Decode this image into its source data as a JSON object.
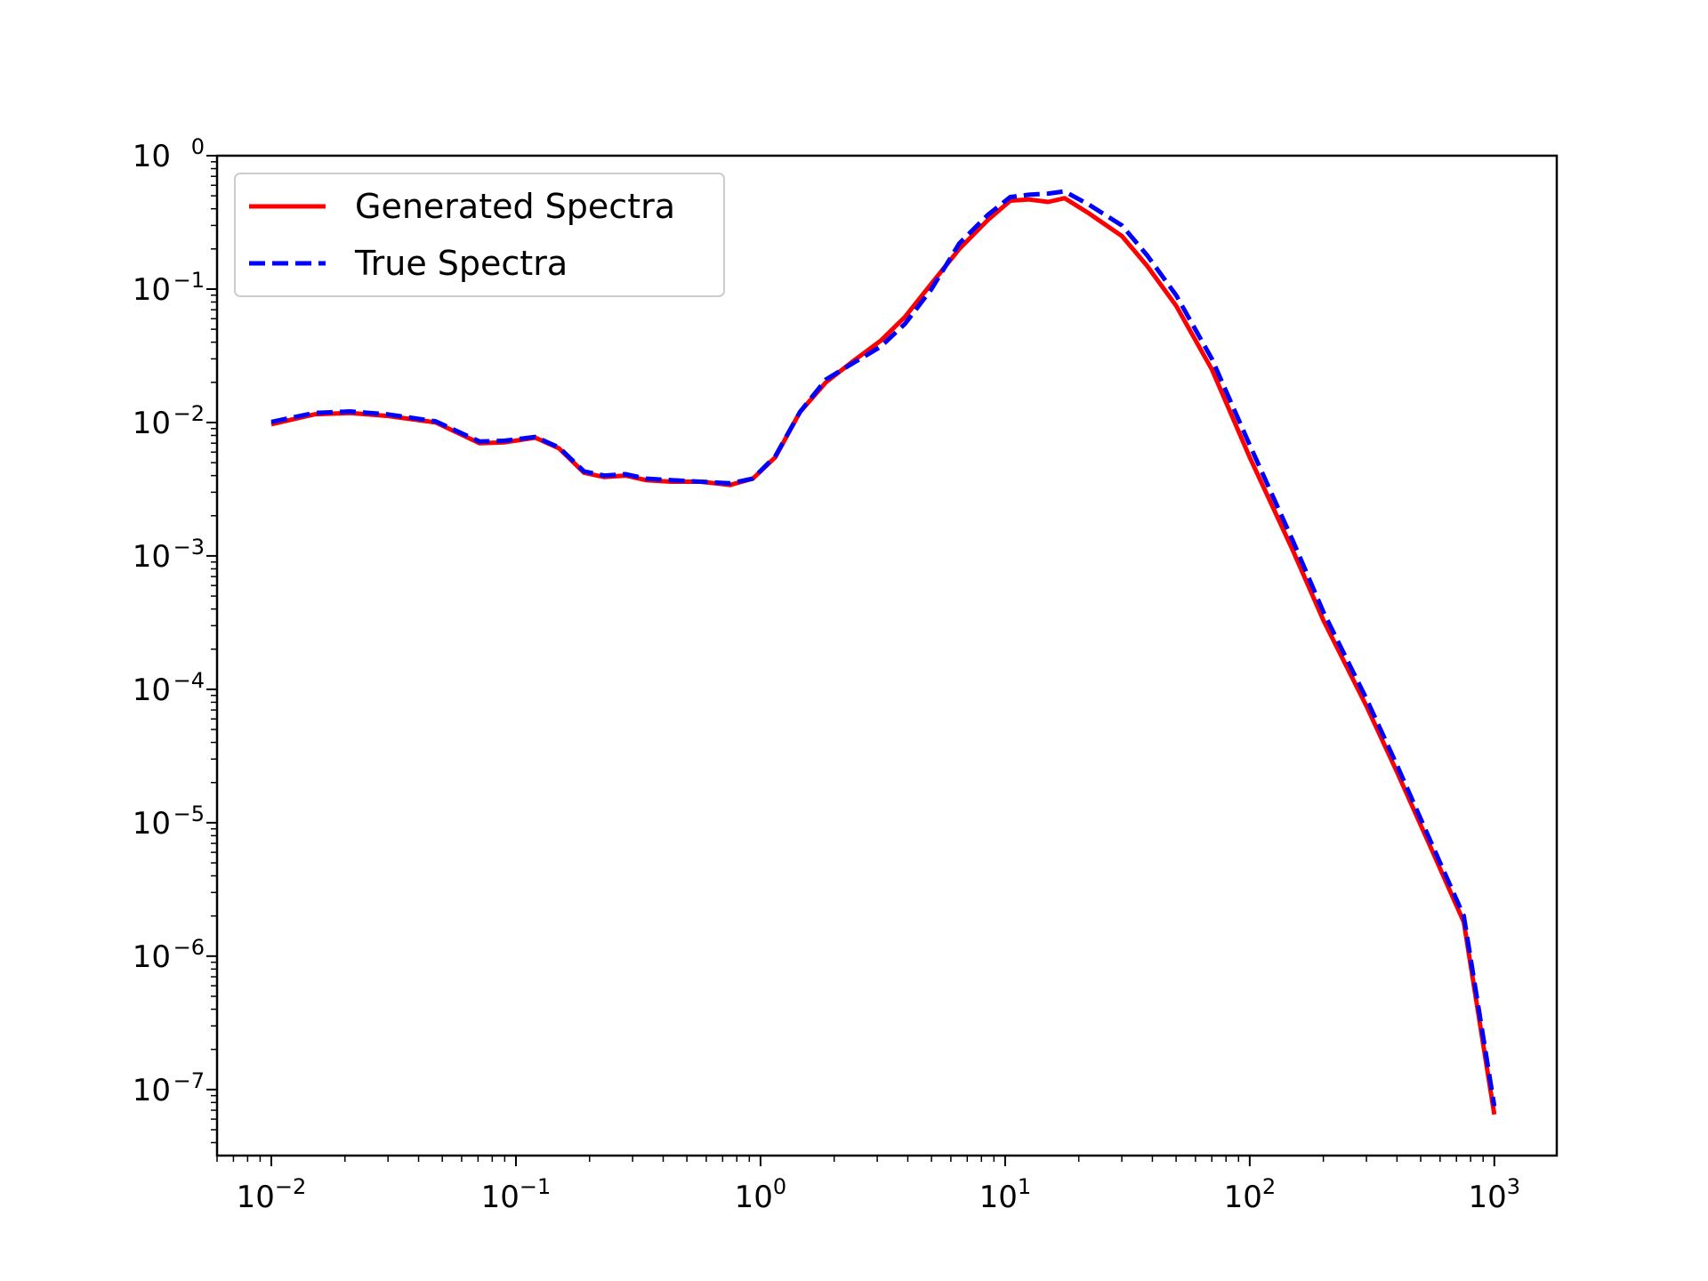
{
  "chart_data": {
    "type": "line",
    "title": "",
    "xlabel": "",
    "ylabel": "",
    "xscale": "log",
    "yscale": "log",
    "xlim": [
      0.006,
      1800
    ],
    "ylim": [
      3.2e-08,
      1.0
    ],
    "grid": false,
    "legend_position": "top-left",
    "x_ticks": [
      {
        "value": 0.01,
        "base": "10",
        "exp": "−2"
      },
      {
        "value": 0.1,
        "base": "10",
        "exp": "−1"
      },
      {
        "value": 1,
        "base": "10",
        "exp": "0"
      },
      {
        "value": 10,
        "base": "10",
        "exp": "1"
      },
      {
        "value": 100,
        "base": "10",
        "exp": "2"
      },
      {
        "value": 1000,
        "base": "10",
        "exp": "3"
      }
    ],
    "y_ticks": [
      {
        "value": 1,
        "base": "10",
        "exp": "0"
      },
      {
        "value": 0.1,
        "base": "10",
        "exp": "−1"
      },
      {
        "value": 0.01,
        "base": "10",
        "exp": "−2"
      },
      {
        "value": 0.001,
        "base": "10",
        "exp": "−3"
      },
      {
        "value": 0.0001,
        "base": "10",
        "exp": "−4"
      },
      {
        "value": 1e-05,
        "base": "10",
        "exp": "−5"
      },
      {
        "value": 1e-06,
        "base": "10",
        "exp": "−6"
      },
      {
        "value": 1e-07,
        "base": "10",
        "exp": "−7"
      }
    ],
    "series": [
      {
        "name": "Generated Spectra",
        "color": "#ff0000",
        "style": "solid",
        "points": [
          [
            0.01,
            0.0097
          ],
          [
            0.015,
            0.0115
          ],
          [
            0.021,
            0.0118
          ],
          [
            0.03,
            0.0112
          ],
          [
            0.047,
            0.01
          ],
          [
            0.071,
            0.007
          ],
          [
            0.09,
            0.0071
          ],
          [
            0.12,
            0.0077
          ],
          [
            0.15,
            0.0064
          ],
          [
            0.19,
            0.0042
          ],
          [
            0.23,
            0.0039
          ],
          [
            0.28,
            0.004
          ],
          [
            0.34,
            0.0037
          ],
          [
            0.43,
            0.0036
          ],
          [
            0.57,
            0.0036
          ],
          [
            0.75,
            0.0034
          ],
          [
            0.93,
            0.0038
          ],
          [
            1.15,
            0.0055
          ],
          [
            1.45,
            0.012
          ],
          [
            1.85,
            0.02
          ],
          [
            2.4,
            0.029
          ],
          [
            3.1,
            0.041
          ],
          [
            3.9,
            0.062
          ],
          [
            5.0,
            0.11
          ],
          [
            6.5,
            0.2
          ],
          [
            8.5,
            0.33
          ],
          [
            10.5,
            0.46
          ],
          [
            12.5,
            0.47
          ],
          [
            15,
            0.45
          ],
          [
            17.5,
            0.48
          ],
          [
            22,
            0.37
          ],
          [
            30,
            0.25
          ],
          [
            38,
            0.15
          ],
          [
            50,
            0.075
          ],
          [
            70,
            0.025
          ],
          [
            100,
            0.0055
          ],
          [
            150,
            0.0011
          ],
          [
            200,
            0.00033
          ],
          [
            300,
            7.5e-05
          ],
          [
            400,
            2.4e-05
          ],
          [
            550,
            6.5e-06
          ],
          [
            750,
            1.8e-06
          ],
          [
            1000,
            6.5e-08
          ]
        ]
      },
      {
        "name": "True Spectra",
        "color": "#0000ff",
        "style": "dashed",
        "points": [
          [
            0.01,
            0.0101
          ],
          [
            0.015,
            0.0118
          ],
          [
            0.021,
            0.0121
          ],
          [
            0.03,
            0.0115
          ],
          [
            0.047,
            0.0102
          ],
          [
            0.071,
            0.0072
          ],
          [
            0.09,
            0.0073
          ],
          [
            0.12,
            0.0078
          ],
          [
            0.15,
            0.0065
          ],
          [
            0.19,
            0.0043
          ],
          [
            0.23,
            0.004
          ],
          [
            0.28,
            0.0041
          ],
          [
            0.34,
            0.0038
          ],
          [
            0.43,
            0.0037
          ],
          [
            0.57,
            0.0036
          ],
          [
            0.75,
            0.0035
          ],
          [
            0.93,
            0.0038
          ],
          [
            1.15,
            0.0056
          ],
          [
            1.45,
            0.012
          ],
          [
            1.85,
            0.021
          ],
          [
            2.4,
            0.028
          ],
          [
            3.1,
            0.037
          ],
          [
            3.9,
            0.055
          ],
          [
            5.0,
            0.1
          ],
          [
            6.5,
            0.22
          ],
          [
            8.5,
            0.36
          ],
          [
            10.5,
            0.49
          ],
          [
            12.5,
            0.51
          ],
          [
            15,
            0.52
          ],
          [
            17.5,
            0.54
          ],
          [
            22,
            0.43
          ],
          [
            30,
            0.3
          ],
          [
            38,
            0.18
          ],
          [
            50,
            0.09
          ],
          [
            70,
            0.03
          ],
          [
            100,
            0.0068
          ],
          [
            150,
            0.0013
          ],
          [
            200,
            0.00038
          ],
          [
            300,
            8.5e-05
          ],
          [
            400,
            2.7e-05
          ],
          [
            550,
            7.2e-06
          ],
          [
            750,
            2e-06
          ],
          [
            1000,
            7.5e-08
          ]
        ]
      }
    ]
  }
}
